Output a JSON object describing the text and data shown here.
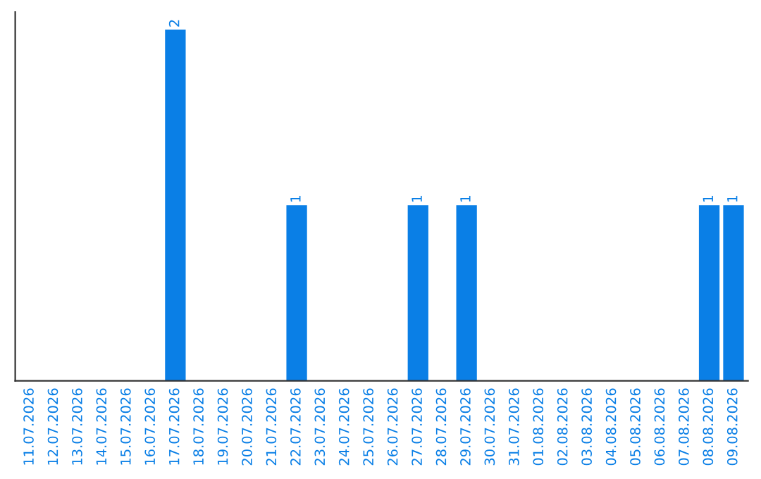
{
  "chart_data": {
    "type": "bar",
    "categories": [
      "11.07.2026",
      "12.07.2026",
      "13.07.2026",
      "14.07.2026",
      "15.07.2026",
      "16.07.2026",
      "17.07.2026",
      "18.07.2026",
      "19.07.2026",
      "20.07.2026",
      "21.07.2026",
      "22.07.2026",
      "23.07.2026",
      "24.07.2026",
      "25.07.2026",
      "26.07.2026",
      "27.07.2026",
      "28.07.2026",
      "29.07.2026",
      "30.07.2026",
      "31.07.2026",
      "01.08.2026",
      "02.08.2026",
      "03.08.2026",
      "04.08.2026",
      "05.08.2026",
      "06.08.2026",
      "07.08.2026",
      "08.08.2026",
      "09.08.2026"
    ],
    "values": [
      0,
      0,
      0,
      0,
      0,
      0,
      2,
      0,
      0,
      0,
      0,
      1,
      0,
      0,
      0,
      0,
      1,
      0,
      1,
      0,
      0,
      0,
      0,
      0,
      0,
      0,
      0,
      0,
      1,
      1
    ],
    "value_labels": [
      null,
      null,
      null,
      null,
      null,
      null,
      "2",
      null,
      null,
      null,
      null,
      "1",
      null,
      null,
      null,
      null,
      "1",
      null,
      "1",
      null,
      null,
      null,
      null,
      null,
      null,
      null,
      null,
      null,
      "1",
      "1"
    ],
    "color": "#0a7fe6",
    "tick_labels": "x",
    "grid": false,
    "legend": false
  }
}
